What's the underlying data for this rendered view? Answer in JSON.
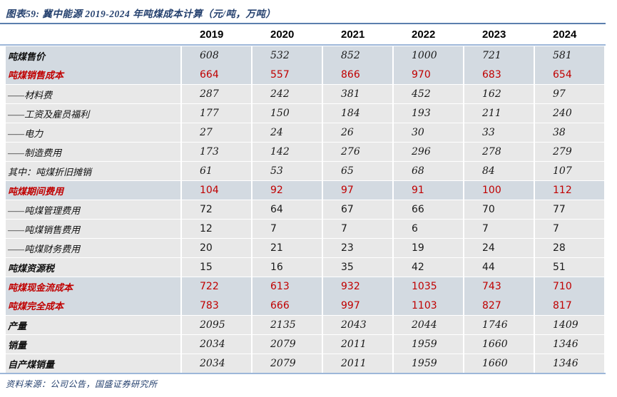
{
  "page": {
    "title": "图表59: 冀中能源 2019-2024 年吨煤成本计算（元/吨，万吨）",
    "source_note": "资料来源：公司公告，国盛证券研究所"
  },
  "colors": {
    "title_blue": "#24406e",
    "rule_dark_blue": "#5b7fae",
    "rule_light_blue": "#9db7d9",
    "row_highlight_blue": "#d3dae1",
    "row_gray": "#e8e8e8",
    "value_red": "#c00000"
  },
  "chart_data": {
    "type": "table",
    "title": "冀中能源 2019-2024 年吨煤成本计算（元/吨，万吨）",
    "columns": [
      "2019",
      "2020",
      "2021",
      "2022",
      "2023",
      "2024"
    ],
    "rows": [
      {
        "label": "吨煤售价",
        "values": [
          608,
          532,
          852,
          1000,
          721,
          581
        ],
        "bg": "blue",
        "red": false,
        "italic": true,
        "label_bold": true,
        "joined": false
      },
      {
        "label": "吨煤销售成本",
        "values": [
          664,
          557,
          866,
          970,
          683,
          654
        ],
        "bg": "blue",
        "red": true,
        "italic": false,
        "label_bold": true,
        "joined": true
      },
      {
        "label": "——材料费",
        "values": [
          287,
          242,
          381,
          452,
          162,
          97
        ],
        "bg": "gray",
        "red": false,
        "italic": true,
        "label_bold": false,
        "joined": false
      },
      {
        "label": "——工资及雇员福利",
        "values": [
          177,
          150,
          184,
          193,
          211,
          240
        ],
        "bg": "gray",
        "red": false,
        "italic": true,
        "label_bold": false,
        "joined": false
      },
      {
        "label": "——电力",
        "values": [
          27,
          24,
          26,
          30,
          33,
          38
        ],
        "bg": "gray",
        "red": false,
        "italic": true,
        "label_bold": false,
        "joined": false
      },
      {
        "label": "——制造费用",
        "values": [
          173,
          142,
          276,
          296,
          278,
          279
        ],
        "bg": "gray",
        "red": false,
        "italic": true,
        "label_bold": false,
        "joined": false
      },
      {
        "label": "其中：吨煤折旧摊销",
        "values": [
          61,
          53,
          65,
          68,
          84,
          107
        ],
        "bg": "gray",
        "red": false,
        "italic": true,
        "label_bold": false,
        "joined": false
      },
      {
        "label": "吨煤期间费用",
        "values": [
          104,
          92,
          97,
          91,
          100,
          112
        ],
        "bg": "blue",
        "red": true,
        "italic": false,
        "label_bold": true,
        "joined": false
      },
      {
        "label": "——吨煤管理费用",
        "values": [
          72,
          64,
          67,
          66,
          70,
          77
        ],
        "bg": "gray",
        "red": false,
        "italic": false,
        "label_bold": false,
        "joined": false
      },
      {
        "label": "——吨煤销售费用",
        "values": [
          12,
          7,
          7,
          6,
          7,
          7
        ],
        "bg": "gray",
        "red": false,
        "italic": false,
        "label_bold": false,
        "joined": false
      },
      {
        "label": "——吨煤财务费用",
        "values": [
          20,
          21,
          23,
          19,
          24,
          28
        ],
        "bg": "gray",
        "red": false,
        "italic": false,
        "label_bold": false,
        "joined": false
      },
      {
        "label": "吨煤资源税",
        "values": [
          15,
          16,
          35,
          42,
          44,
          51
        ],
        "bg": "gray",
        "red": false,
        "italic": false,
        "label_bold": true,
        "joined": false
      },
      {
        "label": "吨煤现金流成本",
        "values": [
          722,
          613,
          932,
          1035,
          743,
          710
        ],
        "bg": "blue",
        "red": true,
        "italic": false,
        "label_bold": true,
        "joined": false
      },
      {
        "label": "吨煤完全成本",
        "values": [
          783,
          666,
          997,
          1103,
          827,
          817
        ],
        "bg": "blue",
        "red": true,
        "italic": false,
        "label_bold": true,
        "joined": true
      },
      {
        "label": "产量",
        "values": [
          2095,
          2135,
          2043,
          2044,
          1746,
          1409
        ],
        "bg": "gray",
        "red": false,
        "italic": true,
        "label_bold": true,
        "joined": false
      },
      {
        "label": "销量",
        "values": [
          2034,
          2079,
          2011,
          1959,
          1660,
          1346
        ],
        "bg": "gray",
        "red": false,
        "italic": true,
        "label_bold": true,
        "joined": false
      },
      {
        "label": "自产煤销量",
        "values": [
          2034,
          2079,
          2011,
          1959,
          1660,
          1346
        ],
        "bg": "gray",
        "red": false,
        "italic": true,
        "label_bold": true,
        "joined": false
      }
    ]
  }
}
